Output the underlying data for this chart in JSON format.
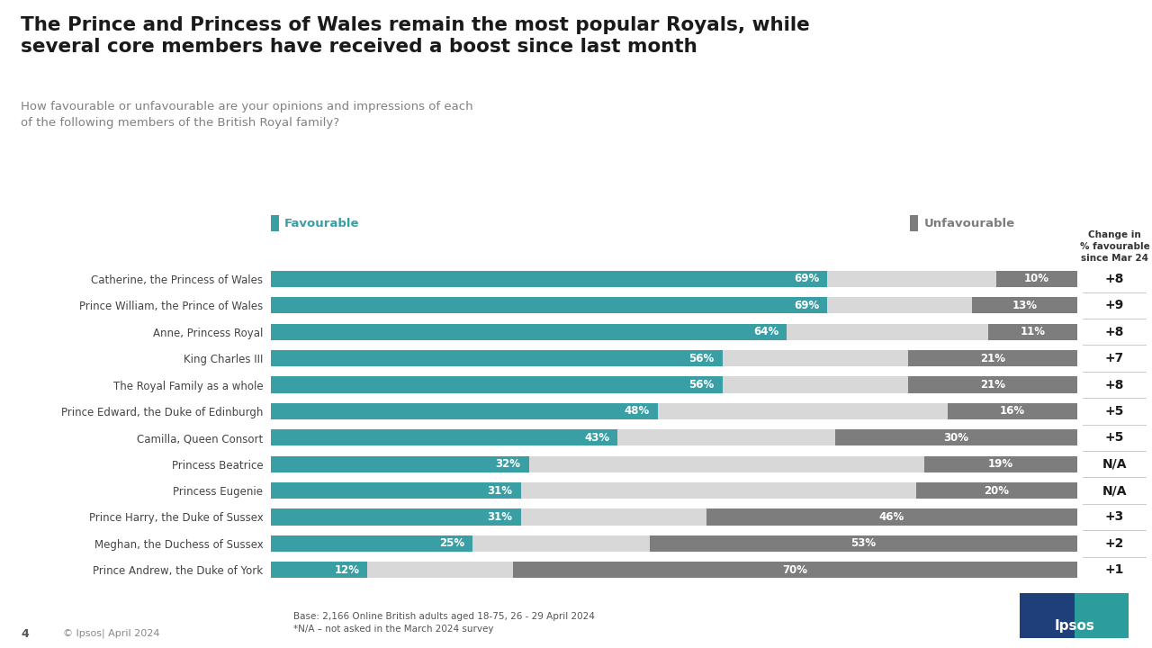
{
  "title": "The Prince and Princess of Wales remain the most popular Royals, while\nseveral core members have received a boost since last month",
  "subtitle": "How favourable or unfavourable are your opinions and impressions of each\nof the following members of the British Royal family?",
  "categories": [
    "Catherine, the Princess of Wales",
    "Prince William, the Prince of Wales",
    "Anne, Princess Royal",
    "King Charles III",
    "The Royal Family as a whole",
    "Prince Edward, the Duke of Edinburgh",
    "Camilla, Queen Consort",
    "Princess Beatrice",
    "Princess Eugenie",
    "Prince Harry, the Duke of Sussex",
    "Meghan, the Duchess of Sussex",
    "Prince Andrew, the Duke of York"
  ],
  "favourable": [
    69,
    69,
    64,
    56,
    56,
    48,
    43,
    32,
    31,
    31,
    25,
    12
  ],
  "unfavourable": [
    10,
    13,
    11,
    21,
    21,
    16,
    30,
    19,
    20,
    46,
    53,
    70
  ],
  "changes": [
    "+8",
    "+9",
    "+8",
    "+7",
    "+8",
    "+5",
    "+5",
    "N/A",
    "N/A",
    "+3",
    "+2",
    "+1"
  ],
  "favourable_color": "#3a9ea5",
  "unfavourable_color": "#7d7d7d",
  "neutral_color": "#d8d8d8",
  "background_color": "#ffffff",
  "title_color": "#1a1a1a",
  "subtitle_color": "#808080",
  "footer_text": "Base: 2,166 Online British adults aged 18-75, 26 - 29 April 2024\n*N/A – not asked in the March 2024 survey",
  "page_number": "4",
  "copyright_text": "© Ipsos| April 2024",
  "change_header": "Change in\n% favourable\nsince Mar 24",
  "legend_favourable": "Favourable",
  "legend_unfavourable": "Unfavourable"
}
